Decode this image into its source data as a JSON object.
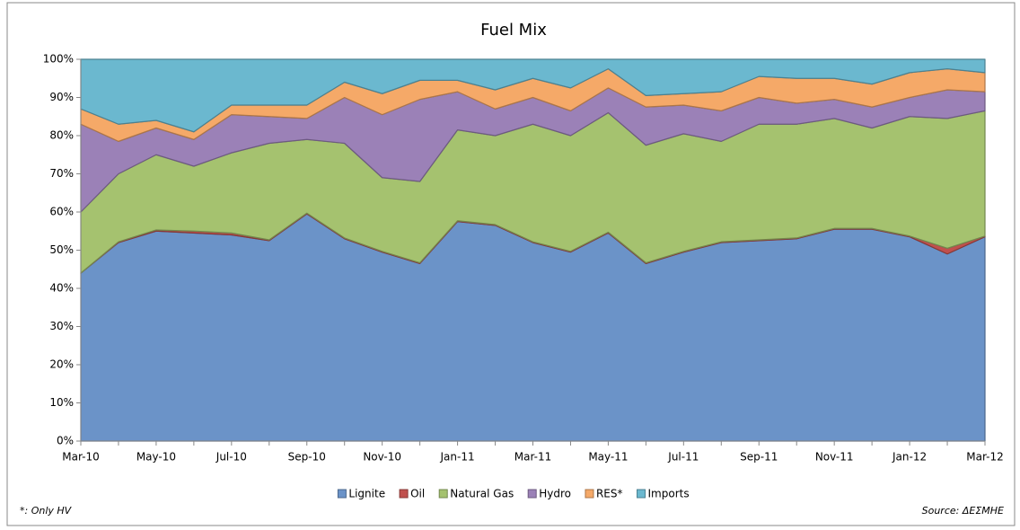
{
  "chart_data": {
    "type": "stacked-area",
    "title": "Fuel Mix",
    "footnote": "*: Only HV",
    "source": "Source: ΔΕΣΜΗΕ",
    "categories": [
      "Mar-10",
      null,
      "May-10",
      null,
      "Jul-10",
      null,
      "Sep-10",
      null,
      "Nov-10",
      null,
      "Jan-11",
      null,
      "Mar-11",
      null,
      "May-11",
      null,
      "Jul-11",
      null,
      "Sep-11",
      null,
      "Nov-11",
      null,
      "Jan-12",
      null,
      "Mar-12"
    ],
    "series": [
      {
        "name": "Lignite",
        "color": "#6b93c8",
        "values": [
          44,
          52,
          55,
          54.5,
          54,
          52.5,
          59.5,
          53,
          49.5,
          46.5,
          57.5,
          56.5,
          52,
          49.5,
          54.5,
          46.5,
          49.5,
          52,
          52.5,
          53,
          55.5,
          55.5,
          53.5,
          49,
          53.5
        ]
      },
      {
        "name": "Oil",
        "color": "#c0504d",
        "values": [
          0,
          0.2,
          0.3,
          0.5,
          0.5,
          0.2,
          0.2,
          0.2,
          0.2,
          0.2,
          0.2,
          0.2,
          0.2,
          0.2,
          0.2,
          0.2,
          0.2,
          0.2,
          0.2,
          0.2,
          0.2,
          0.2,
          0.2,
          1.5,
          0.2
        ]
      },
      {
        "name": "Natural Gas",
        "color": "#a5c26f",
        "values": [
          16,
          17.8,
          19.7,
          17,
          21,
          25.3,
          19.3,
          24.8,
          19.3,
          21.3,
          23.8,
          23.3,
          30.8,
          30.3,
          31.3,
          30.8,
          30.8,
          26.3,
          30.3,
          29.8,
          28.8,
          26.3,
          31.3,
          34,
          32.8
        ]
      },
      {
        "name": "Hydro",
        "color": "#9b81b7",
        "values": [
          23,
          8.5,
          7,
          7,
          10,
          7,
          5.5,
          12,
          16.5,
          21.5,
          10,
          7,
          7,
          6.5,
          6.5,
          10,
          7.5,
          8,
          7,
          5.5,
          5,
          5.5,
          5,
          7.5,
          5
        ]
      },
      {
        "name": "RES*",
        "color": "#f5a968",
        "values": [
          4,
          4.5,
          2,
          2,
          2.5,
          3,
          3.5,
          4,
          5.5,
          5,
          3,
          5,
          5,
          6,
          5,
          3,
          3,
          5,
          5.5,
          6.5,
          5.5,
          6,
          6.5,
          5.5,
          5
        ]
      },
      {
        "name": "Imports",
        "color": "#6bb8cf",
        "values": [
          13,
          17,
          16,
          19,
          12,
          12,
          12,
          6,
          9,
          5.5,
          5.5,
          8,
          5,
          7.5,
          2.5,
          9.5,
          9,
          8.5,
          4.5,
          5,
          5,
          6.5,
          3.5,
          2.5,
          3.5
        ]
      }
    ],
    "ylim": [
      0,
      100
    ],
    "yticks": [
      {
        "value": 0,
        "label": "0%"
      },
      {
        "value": 10,
        "label": "10%"
      },
      {
        "value": 20,
        "label": "20%"
      },
      {
        "value": 30,
        "label": "30%"
      },
      {
        "value": 40,
        "label": "40%"
      },
      {
        "value": 50,
        "label": "50%"
      },
      {
        "value": 60,
        "label": "60%"
      },
      {
        "value": 70,
        "label": "70%"
      },
      {
        "value": 80,
        "label": "80%"
      },
      {
        "value": 90,
        "label": "90%"
      },
      {
        "value": 100,
        "label": "100%"
      }
    ],
    "grid": false
  }
}
